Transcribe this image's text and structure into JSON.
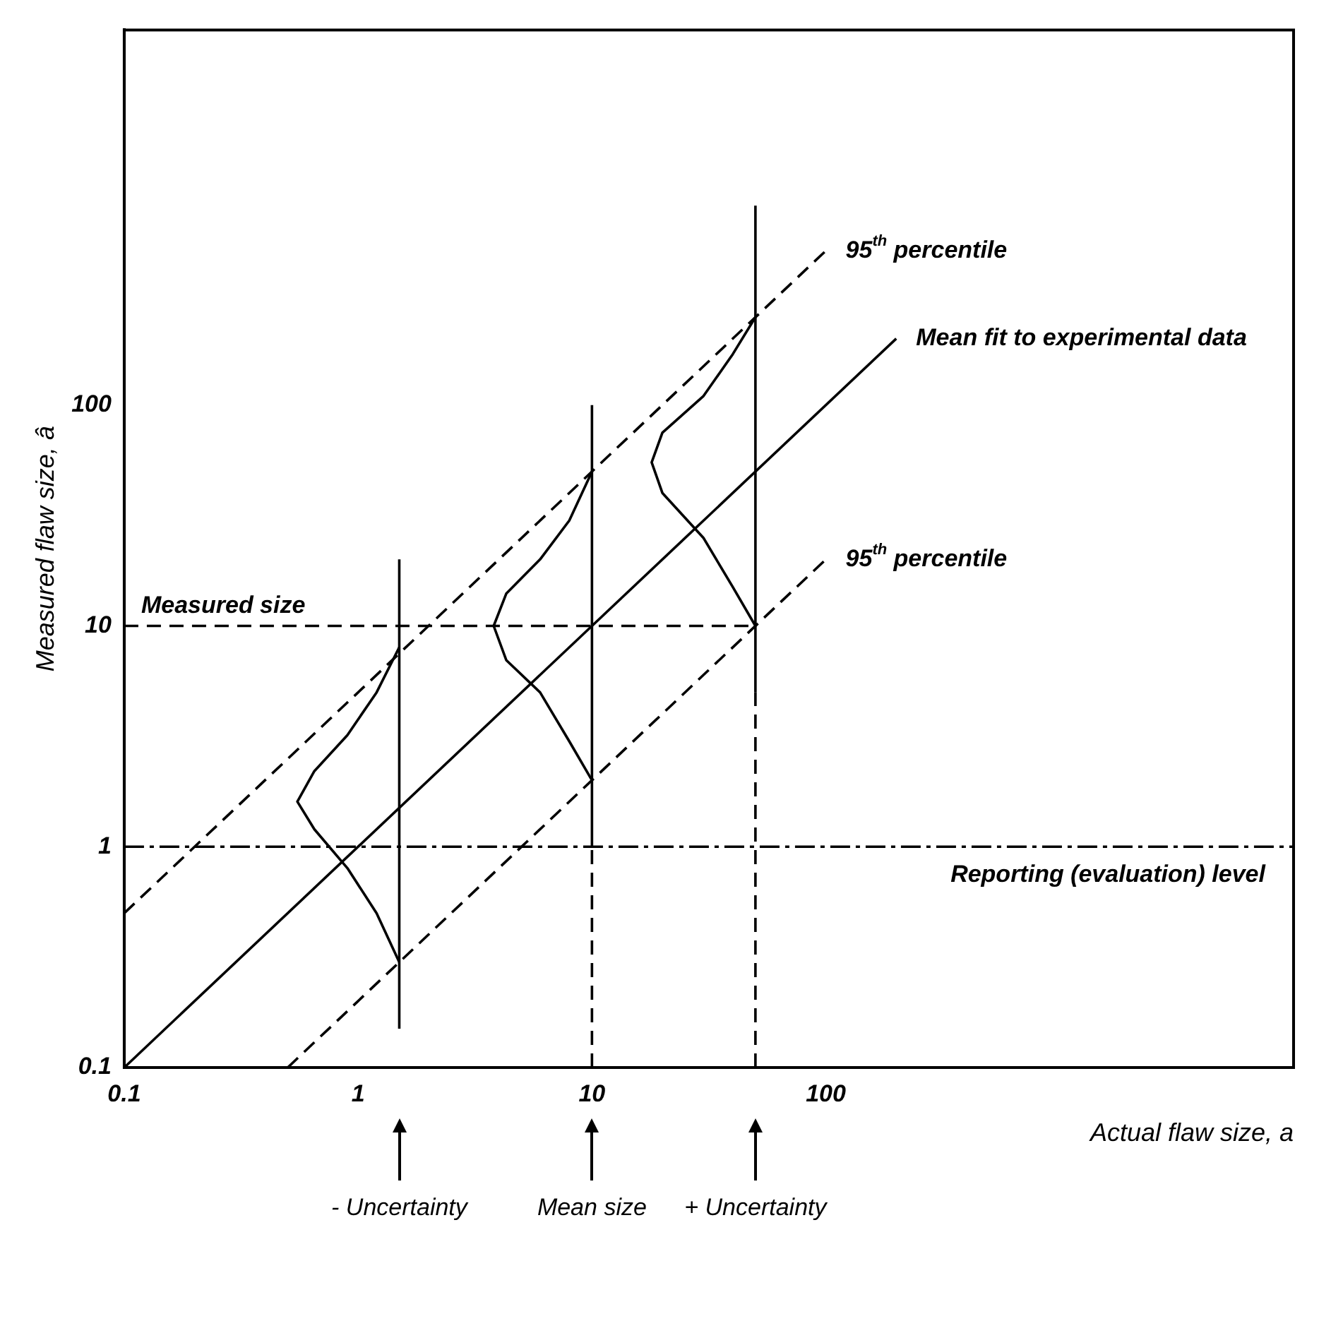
{
  "chart_data": {
    "type": "line",
    "xlabel": "Actual flaw size, a",
    "ylabel": "Measured flaw size, â",
    "log": "xy",
    "grid": false,
    "legend": false,
    "marker": "none",
    "xlim": [
      0.1,
      10000
    ],
    "ylim": [
      0.1,
      5000
    ],
    "xticks": [
      0.1,
      1,
      10,
      100
    ],
    "yticks": [
      0.1,
      1,
      10,
      100
    ],
    "series": [
      {
        "name": "Mean fit to experimental data",
        "color": "#000000",
        "line_style": "solid",
        "x": [
          0.1,
          200
        ],
        "values": [
          0.1,
          200
        ]
      },
      {
        "name": "95$^{th}$ percentile",
        "color": "#000000",
        "line_style": "dashed",
        "x": [
          0.1,
          100
        ],
        "values": [
          0.5,
          500
        ]
      },
      {
        "name": "95$^{th}$ percentile",
        "color": "#000000",
        "line_style": "dashed",
        "x": [
          0.5,
          100
        ],
        "values": [
          0.1,
          20
        ]
      },
      {
        "name": "Measured size",
        "color": "#000000",
        "line_style": "dashed",
        "x": [
          0.1,
          50
        ],
        "values": [
          10,
          10
        ]
      },
      {
        "color": "#000000",
        "line_style": "solid",
        "x": [
          1.5,
          1.5
        ],
        "values": [
          0.15,
          20
        ]
      },
      {
        "color": "#000000",
        "line_style": "dashed",
        "x": [
          10,
          10
        ],
        "values": [
          0.1,
          1
        ]
      },
      {
        "color": "#000000",
        "line_style": "solid",
        "x": [
          10,
          10
        ],
        "values": [
          1,
          100
        ]
      },
      {
        "color": "#000000",
        "line_style": "dashed",
        "x": [
          50,
          50
        ],
        "values": [
          0.1,
          5
        ]
      },
      {
        "color": "#000000",
        "line_style": "solid",
        "x": [
          50,
          50
        ],
        "values": [
          5,
          800
        ]
      },
      {
        "color": "#000000",
        "line_style": "solid",
        "x": [
          1.5,
          1.2,
          0.9,
          0.65,
          0.55,
          0.65,
          0.9,
          1.2,
          1.5
        ],
        "values": [
          0.3,
          0.5,
          0.8,
          1.2,
          1.6,
          2.2,
          3.2,
          5,
          8
        ]
      },
      {
        "color": "#000000",
        "line_style": "solid",
        "x": [
          10,
          8,
          6,
          4.3,
          3.8,
          4.3,
          6,
          8,
          10
        ],
        "values": [
          2,
          3,
          5,
          7,
          10,
          14,
          20,
          30,
          50
        ]
      },
      {
        "color": "#000000",
        "line_style": "solid",
        "x": [
          50,
          40,
          30,
          20,
          18,
          20,
          30,
          40,
          50
        ],
        "values": [
          10,
          15,
          25,
          40,
          55,
          75,
          110,
          170,
          250
        ]
      }
    ],
    "ref_lines": [
      {
        "axis": "y",
        "value": 1,
        "label": "Reporting (evaluation) level",
        "line_style": "dashed"
      }
    ],
    "annotations": [
      "- Uncertainty",
      "Mean size",
      "+ Uncertainty"
    ]
  }
}
